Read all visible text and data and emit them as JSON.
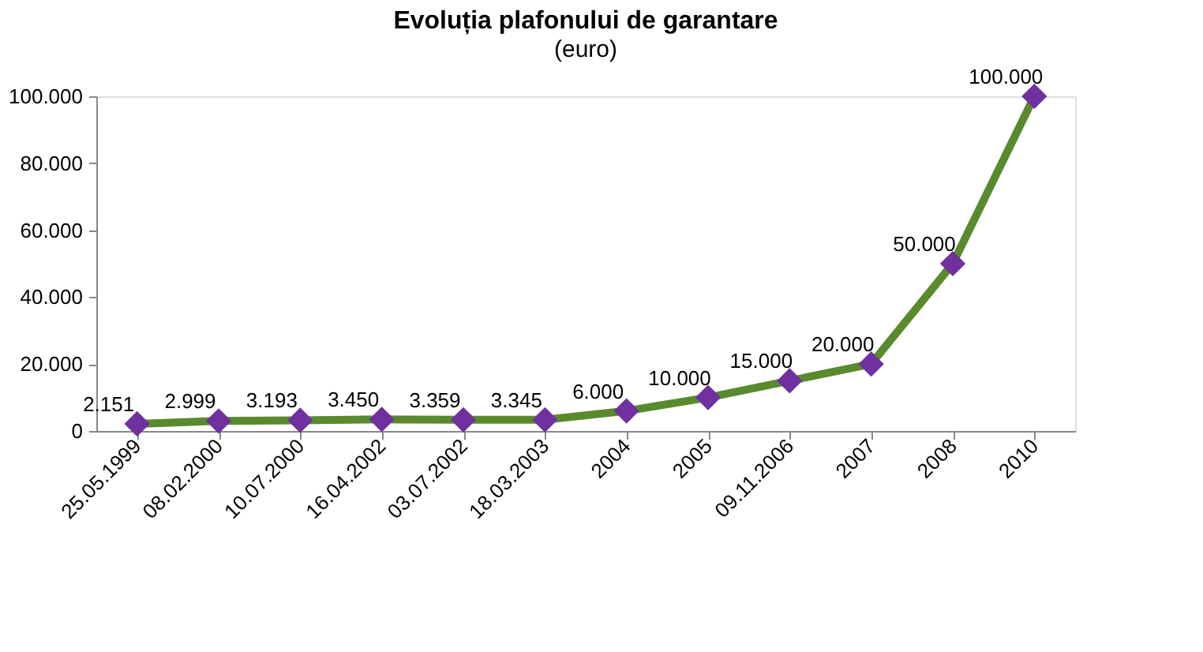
{
  "chart_data": {
    "type": "line",
    "title": "Evoluția plafonului de garantare",
    "subtitle": "(euro)",
    "categories": [
      "25.05.1999",
      "08.02.2000",
      "10.07.2000",
      "16.04.2002",
      "03.07.2002",
      "18.03.2003",
      "2004",
      "2005",
      "09.11.2006",
      "2007",
      "2008",
      "2010"
    ],
    "series": [
      {
        "color": "#5a8a2e",
        "colors": [
          "#7030a0",
          "#7030a0",
          "#7030a0",
          "#7030a0",
          "#7030a0",
          "#7030a0",
          "#7030a0",
          "#7030a0",
          "#7030a0",
          "#7030a0",
          "#7030a0",
          "#7030a0"
        ],
        "values": [
          2151,
          2999,
          3193,
          3450,
          3359,
          3345,
          6000,
          10000,
          15000,
          20000,
          50000,
          100000
        ],
        "value_labels": [
          "2.151",
          "2.999",
          "3.193",
          "3.450",
          "3.359",
          "3.345",
          "6.000",
          "10.000",
          "15.000",
          "20.000",
          "50.000",
          "100.000"
        ]
      }
    ],
    "ylim": [
      0,
      100000
    ],
    "yticks": [
      {
        "value": 0,
        "label": "0"
      },
      {
        "value": 20000,
        "label": "20.000"
      },
      {
        "value": 40000,
        "label": "40.000"
      },
      {
        "value": 60000,
        "label": "60.000"
      },
      {
        "value": 80000,
        "label": "80.000"
      },
      {
        "value": 100000,
        "label": "100.000"
      }
    ],
    "marker": "diamond",
    "line_style": "solid",
    "grid": false
  }
}
